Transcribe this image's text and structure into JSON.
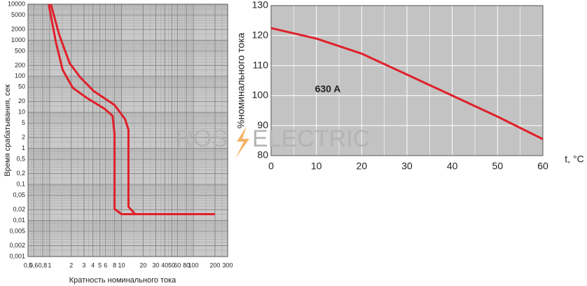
{
  "chart_data": [
    {
      "type": "line",
      "log_x": true,
      "log_y": true,
      "grid": true,
      "xlabel": "Кратность номинального тока",
      "ylabel": "Время срабатывания, сек",
      "xlim": [
        0.5,
        300
      ],
      "ylim": [
        0.001,
        10000
      ],
      "xticks": [
        {
          "value": 0.5,
          "label": "0,5"
        },
        {
          "value": 0.6,
          "label": "0,6"
        },
        {
          "value": 0.8,
          "label": "0,8"
        },
        1,
        2,
        3,
        4,
        5,
        6,
        8,
        10,
        20,
        30,
        40,
        50,
        60,
        80,
        100,
        200,
        300
      ],
      "yticks": [
        10000,
        5000,
        2000,
        1000,
        500,
        200,
        100,
        50,
        20,
        10,
        5,
        2,
        1,
        {
          "value": 0.5,
          "label": "0,5"
        },
        {
          "value": 0.2,
          "label": "0,2"
        },
        {
          "value": 0.1,
          "label": "0,1"
        },
        {
          "value": 0.05,
          "label": "0,05"
        },
        {
          "value": 0.02,
          "label": "0,02"
        },
        {
          "value": 0.01,
          "label": "0,01"
        },
        {
          "value": 0.005,
          "label": "0,005"
        },
        {
          "value": 0.002,
          "label": "0,002"
        },
        {
          "value": 0.001,
          "label": "0,001"
        }
      ],
      "series": [
        {
          "color": "#e0202a",
          "x": [
            0.97,
            1.22,
            1.52,
            2.1,
            3.3,
            5.8,
            7.5,
            8.0,
            8.0,
            10,
            200
          ],
          "values": [
            10000,
            900,
            150,
            48,
            25,
            12.6,
            8,
            2.6,
            0.021,
            0.015,
            0.015
          ]
        },
        {
          "color": "#e0202a",
          "x": [
            1.04,
            1.36,
            1.9,
            2.65,
            4.1,
            8,
            11.2,
            12.5,
            12.5,
            15.5,
            200
          ],
          "values": [
            10000,
            1400,
            230,
            95,
            39,
            16,
            6.5,
            3.3,
            0.024,
            0.015,
            0.015
          ]
        }
      ]
    },
    {
      "type": "line",
      "grid": true,
      "ylabel": "%номинального тока",
      "xlabel": "t, °C",
      "annotation": "630 A",
      "xlim": [
        0,
        60
      ],
      "ylim": [
        80,
        130
      ],
      "xticks": [
        0,
        10,
        20,
        30,
        40,
        50,
        60
      ],
      "yticks": [
        80,
        90,
        100,
        110,
        120,
        130
      ],
      "x": [
        0,
        10,
        20,
        30,
        40,
        50,
        60
      ],
      "series": [
        {
          "color": "#e0202a",
          "values": [
            122.5,
            119,
            114,
            107,
            100,
            93,
            85.5
          ]
        }
      ]
    }
  ],
  "watermark": {
    "left": "ROS",
    "right": "ELECTRIC"
  }
}
